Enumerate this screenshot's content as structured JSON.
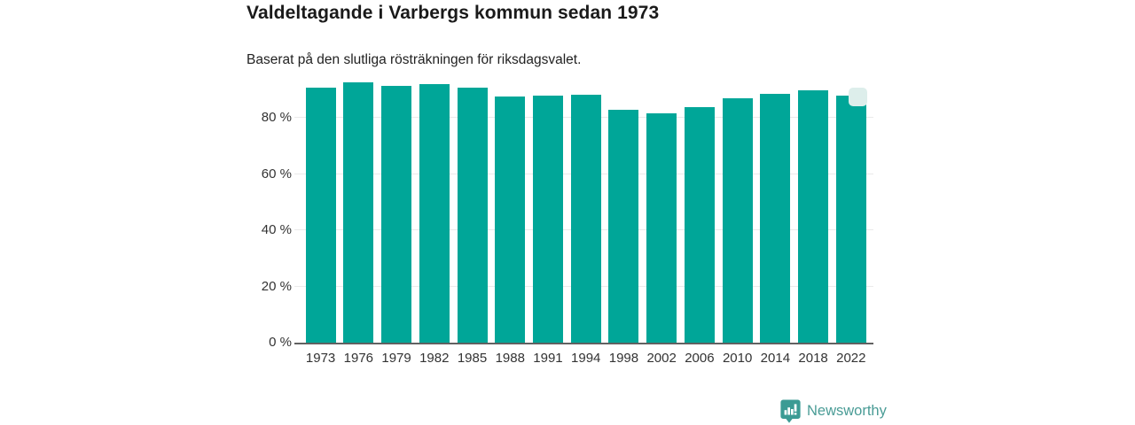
{
  "header": {
    "title": "Valdeltagande i Varbergs kommun sedan 1973",
    "subtitle": "Baserat på den slutliga rösträkningen för riksdagsvalet."
  },
  "chart_data": {
    "type": "bar",
    "title": "Valdeltagande i Varbergs kommun sedan 1973",
    "subtitle": "Baserat på den slutliga rösträkningen för riksdagsvalet.",
    "categories": [
      "1973",
      "1976",
      "1979",
      "1982",
      "1985",
      "1988",
      "1991",
      "1994",
      "1998",
      "2002",
      "2006",
      "2010",
      "2014",
      "2018",
      "2022"
    ],
    "values": [
      91.0,
      92.9,
      91.6,
      92.2,
      90.8,
      87.8,
      88.1,
      88.4,
      83.1,
      81.8,
      84.0,
      87.0,
      88.7,
      90.0,
      88.2
    ],
    "unit": "%",
    "xlabel": "",
    "ylabel": "",
    "ylim": [
      0,
      100
    ],
    "ytick_values": [
      0,
      20,
      40,
      60,
      80
    ],
    "ytick_labels": [
      "0 %",
      "20 %",
      "40 %",
      "60 %",
      "80 %"
    ],
    "grid": true,
    "legend": false,
    "bar_color": "#00a698",
    "grid_color": "#eaeaea",
    "axis_line_color": "#616161",
    "tick_label_color": "#333333",
    "last_bar_marker": {
      "present": true,
      "color": "#ddeeeb"
    }
  },
  "footer": {
    "brand": "Newsworthy",
    "brand_text_color": "#4a9c96",
    "logo_color": "#3b9b94"
  }
}
